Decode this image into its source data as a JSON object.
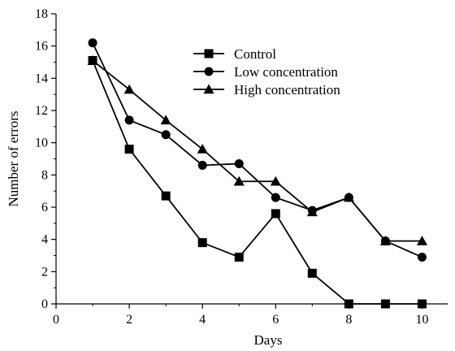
{
  "chart_data": {
    "type": "line",
    "title": "",
    "xlabel": "Days",
    "ylabel": "Number of errors",
    "xlim": [
      0,
      10.7
    ],
    "ylim": [
      0,
      18
    ],
    "xticks": [
      0,
      2,
      4,
      6,
      8,
      10
    ],
    "yticks": [
      0,
      2,
      4,
      6,
      8,
      10,
      12,
      14,
      16,
      18
    ],
    "grid": false,
    "legend_position": "top-center",
    "series": [
      {
        "name": "Control",
        "marker": "square",
        "x": [
          1,
          2,
          3,
          4,
          5,
          6,
          7,
          8,
          9,
          10
        ],
        "y": [
          15.1,
          9.6,
          6.7,
          3.8,
          2.9,
          5.6,
          1.9,
          0.0,
          0.0,
          0.0
        ]
      },
      {
        "name": "Low concentration",
        "marker": "circle",
        "x": [
          1,
          2,
          3,
          4,
          5,
          6,
          7,
          8,
          9,
          10
        ],
        "y": [
          16.2,
          11.4,
          10.5,
          8.6,
          8.7,
          6.6,
          5.8,
          6.6,
          3.9,
          2.9
        ]
      },
      {
        "name": "High concentration",
        "marker": "triangle",
        "x": [
          1,
          2,
          3,
          4,
          5,
          6,
          7,
          8,
          9,
          10
        ],
        "y": [
          15.1,
          13.3,
          11.4,
          9.6,
          7.6,
          7.6,
          5.7,
          6.6,
          3.9,
          3.9
        ]
      }
    ],
    "colors": {
      "line": "#000000",
      "marker": "#000000",
      "axis": "#000000"
    }
  }
}
